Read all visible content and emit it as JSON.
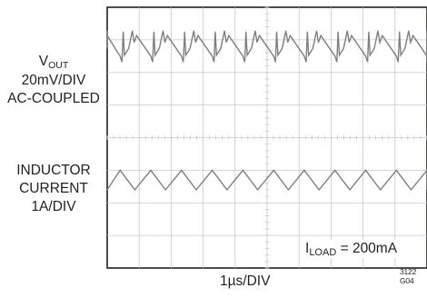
{
  "chart_data": {
    "type": "line",
    "title": "",
    "grid": true,
    "divisions": {
      "x": 10,
      "y": 8
    },
    "xlabel": "1µs/DIV",
    "series": [
      {
        "name_main": "V",
        "name_sub": "OUT",
        "scale": "20mV/DIV",
        "coupling": "AC-COUPLED",
        "shape": "sawtooth with switching spikes",
        "period_div": 0.96,
        "amplitude_div": 0.6,
        "center_div": 6.8
      },
      {
        "name_line1": "INDUCTOR",
        "name_line2": "CURRENT",
        "scale": "1A/DIV",
        "shape": "triangle",
        "period_div": 0.96,
        "amplitude_div": 0.6,
        "center_div": 2.7
      }
    ],
    "condition": {
      "main": "I",
      "sub": "LOAD",
      "rest": " = 200mA"
    },
    "figure_id": "3122 G04",
    "colors": {
      "trace": "#7f7f7f",
      "grid": "#c8c8c8",
      "frame": "#231f20"
    }
  }
}
